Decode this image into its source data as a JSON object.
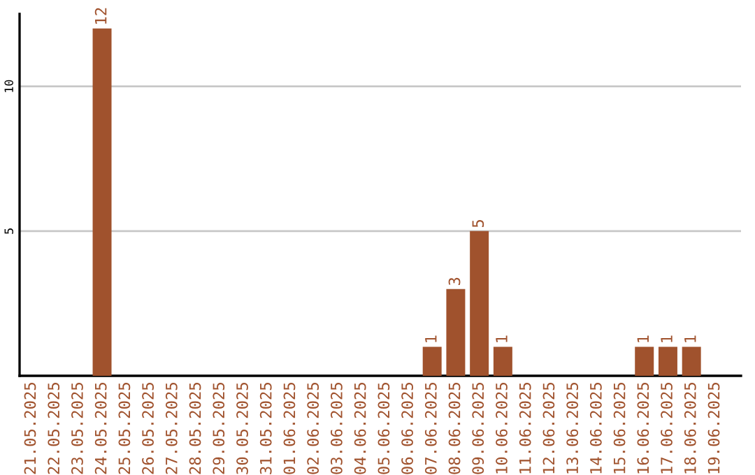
{
  "chart_data": {
    "type": "bar",
    "categories": [
      "21.05.2025",
      "22.05.2025",
      "23.05.2025",
      "24.05.2025",
      "25.05.2025",
      "26.05.2025",
      "27.05.2025",
      "28.05.2025",
      "29.05.2025",
      "30.05.2025",
      "31.05.2025",
      "01.06.2025",
      "02.06.2025",
      "03.06.2025",
      "04.06.2025",
      "05.06.2025",
      "06.06.2025",
      "07.06.2025",
      "08.06.2025",
      "09.06.2025",
      "10.06.2025",
      "11.06.2025",
      "12.06.2025",
      "13.06.2025",
      "14.06.2025",
      "15.06.2025",
      "16.06.2025",
      "17.06.2025",
      "18.06.2025",
      "19.06.2025"
    ],
    "values": [
      0,
      0,
      0,
      12,
      0,
      0,
      0,
      0,
      0,
      0,
      0,
      0,
      0,
      0,
      0,
      0,
      0,
      1,
      3,
      5,
      1,
      0,
      0,
      0,
      0,
      0,
      1,
      1,
      1,
      0
    ],
    "value_labels": [
      null,
      null,
      null,
      "12",
      null,
      null,
      null,
      null,
      null,
      null,
      null,
      null,
      null,
      null,
      null,
      null,
      null,
      "1",
      "3",
      "5",
      "1",
      null,
      null,
      null,
      null,
      null,
      "1",
      "1",
      "1",
      null
    ],
    "color": "#a0522d",
    "ylim": [
      0,
      12.5
    ],
    "yticks": [
      5,
      10
    ],
    "grid": "y"
  }
}
